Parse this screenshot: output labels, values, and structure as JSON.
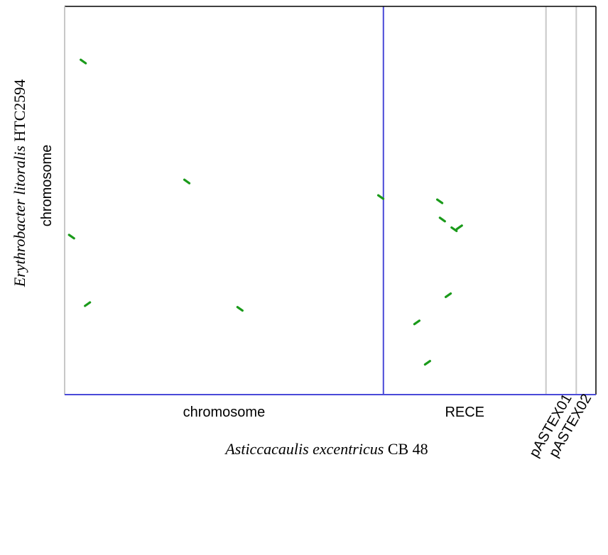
{
  "chart_data": {
    "type": "scatter",
    "x_axis": {
      "genome_prefix": "Asticcacaulis excentricus",
      "genome_suffix": "CB 48",
      "sequences": [
        "chromosome",
        "RECE",
        "pASTEX01",
        "pASTEX02"
      ],
      "boundaries": [
        0,
        0.6,
        0.906,
        0.963,
        1.0
      ]
    },
    "y_axis": {
      "genome_prefix": "Erythrobacter litoralis",
      "genome_suffix": "HTC2594",
      "sequences": [
        "chromosome"
      ],
      "boundaries": [
        0,
        1.0
      ]
    },
    "colors": {
      "points": "#1a9a1a",
      "primary_boundary": "#4a4ad8",
      "secondary_boundary": "#c8c8c8",
      "frame": "#000000"
    },
    "points": [
      {
        "x": 0.035,
        "y": 0.858,
        "dir": 1
      },
      {
        "x": 0.013,
        "y": 0.407,
        "dir": 1
      },
      {
        "x": 0.23,
        "y": 0.549,
        "dir": 1
      },
      {
        "x": 0.043,
        "y": 0.233,
        "dir": -1
      },
      {
        "x": 0.33,
        "y": 0.221,
        "dir": 1
      },
      {
        "x": 0.595,
        "y": 0.509,
        "dir": 1
      },
      {
        "x": 0.706,
        "y": 0.498,
        "dir": 1
      },
      {
        "x": 0.711,
        "y": 0.451,
        "dir": 1
      },
      {
        "x": 0.733,
        "y": 0.426,
        "dir": 1
      },
      {
        "x": 0.743,
        "y": 0.431,
        "dir": -1
      },
      {
        "x": 0.722,
        "y": 0.256,
        "dir": -1
      },
      {
        "x": 0.663,
        "y": 0.186,
        "dir": -1
      },
      {
        "x": 0.683,
        "y": 0.082,
        "dir": -1
      }
    ]
  }
}
